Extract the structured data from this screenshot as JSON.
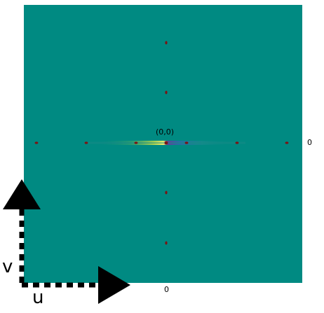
{
  "labels": {
    "origin": "(0,0)",
    "right_axis_zero": "0",
    "bottom_axis_zero": "0",
    "v_axis": "v",
    "u_axis": "u"
  },
  "colors": {
    "background_field": "#008a82",
    "dot": "#7a1414",
    "arrow": "#000000"
  }
}
